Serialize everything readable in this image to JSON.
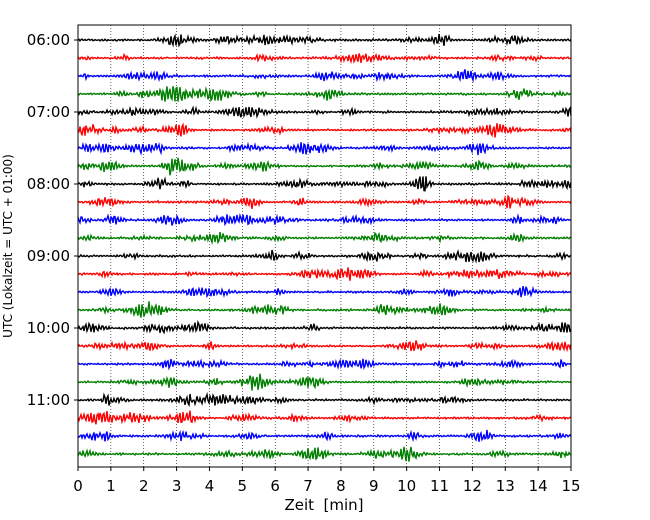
{
  "chart_data": {
    "type": "line",
    "title": "",
    "xlabel": "Zeit  [min]",
    "ylabel": "UTC (Lokalzeit = UTC + 01:00)",
    "xlim": [
      0,
      15
    ],
    "x_ticks": [
      "0",
      "1",
      "2",
      "3",
      "4",
      "5",
      "6",
      "7",
      "8",
      "9",
      "10",
      "11",
      "12",
      "13",
      "14",
      "15"
    ],
    "y_ticks": [
      "06:00",
      "07:00",
      "08:00",
      "09:00",
      "10:00",
      "11:00"
    ],
    "grid": "vertical dotted lines at each minute",
    "trace_interval_minutes": 15,
    "trace_count": 24,
    "trace_colors": [
      "#000000",
      "#ff0000",
      "#0000ff",
      "#007f00"
    ],
    "series": [
      {
        "start": "06:00",
        "color": "#000000"
      },
      {
        "start": "06:15",
        "color": "#ff0000"
      },
      {
        "start": "06:30",
        "color": "#0000ff"
      },
      {
        "start": "06:45",
        "color": "#007f00"
      },
      {
        "start": "07:00",
        "color": "#000000"
      },
      {
        "start": "07:15",
        "color": "#ff0000"
      },
      {
        "start": "07:30",
        "color": "#0000ff"
      },
      {
        "start": "07:45",
        "color": "#007f00"
      },
      {
        "start": "08:00",
        "color": "#000000"
      },
      {
        "start": "08:15",
        "color": "#ff0000"
      },
      {
        "start": "08:30",
        "color": "#0000ff"
      },
      {
        "start": "08:45",
        "color": "#007f00"
      },
      {
        "start": "09:00",
        "color": "#000000"
      },
      {
        "start": "09:15",
        "color": "#ff0000"
      },
      {
        "start": "09:30",
        "color": "#0000ff"
      },
      {
        "start": "09:45",
        "color": "#007f00"
      },
      {
        "start": "10:00",
        "color": "#000000"
      },
      {
        "start": "10:15",
        "color": "#ff0000"
      },
      {
        "start": "10:30",
        "color": "#0000ff"
      },
      {
        "start": "10:45",
        "color": "#007f00"
      },
      {
        "start": "11:00",
        "color": "#000000"
      },
      {
        "start": "11:15",
        "color": "#ff0000"
      },
      {
        "start": "11:30",
        "color": "#0000ff"
      },
      {
        "start": "11:45",
        "color": "#007f00"
      }
    ]
  }
}
